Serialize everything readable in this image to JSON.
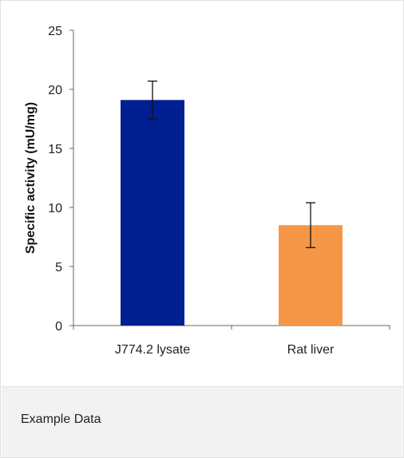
{
  "chart_data": {
    "type": "bar",
    "categories": [
      "J774.2 lysate",
      "Rat liver"
    ],
    "values": [
      19.1,
      8.5
    ],
    "errors": [
      1.6,
      1.9
    ],
    "colors": [
      "#001f91",
      "#f59746"
    ],
    "ylabel": "Specific activity (mU/mg)",
    "ylim": [
      0,
      25
    ],
    "yticks": [
      0,
      5,
      10,
      15,
      20,
      25
    ],
    "grid": false
  },
  "caption": {
    "text": "Example Data"
  }
}
